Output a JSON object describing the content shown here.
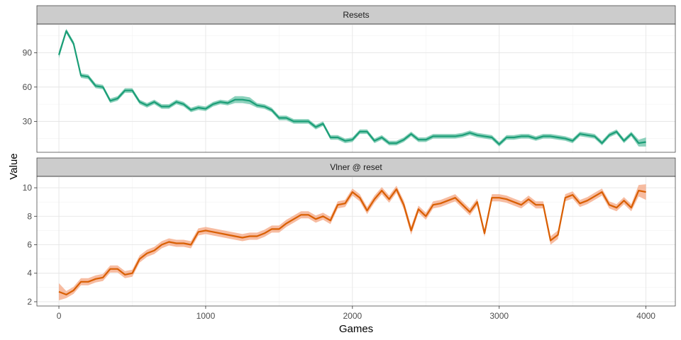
{
  "chart_data": {
    "type": "line",
    "xlabel": "Games",
    "ylabel": "Value",
    "xlim": [
      -150,
      4200
    ],
    "xticks": [
      0,
      1000,
      2000,
      3000,
      4000
    ],
    "grid": true,
    "band": true,
    "x": [
      0,
      50,
      100,
      150,
      200,
      250,
      300,
      350,
      400,
      450,
      500,
      550,
      600,
      650,
      700,
      750,
      800,
      850,
      900,
      950,
      1000,
      1050,
      1100,
      1150,
      1200,
      1250,
      1300,
      1350,
      1400,
      1450,
      1500,
      1550,
      1600,
      1650,
      1700,
      1750,
      1800,
      1850,
      1900,
      1950,
      2000,
      2050,
      2100,
      2150,
      2200,
      2250,
      2300,
      2350,
      2400,
      2450,
      2500,
      2550,
      2600,
      2650,
      2700,
      2750,
      2800,
      2850,
      2900,
      2950,
      3000,
      3050,
      3100,
      3150,
      3200,
      3250,
      3300,
      3350,
      3400,
      3450,
      3500,
      3550,
      3600,
      3650,
      3700,
      3750,
      3800,
      3850,
      3900,
      3950,
      4000
    ],
    "panels": [
      {
        "title": "Resets",
        "color": "#1b9e77",
        "band_color": "#66c2a5",
        "ylim": [
          3,
          115
        ],
        "yticks": [
          30,
          60,
          90
        ],
        "values": [
          88,
          109,
          98,
          70,
          69,
          61,
          60,
          48,
          50,
          57,
          57,
          47,
          44,
          47,
          43,
          43,
          47,
          45,
          40,
          42,
          41,
          45,
          47,
          46,
          49,
          49,
          48,
          44,
          43,
          40,
          33,
          33,
          30,
          30,
          30,
          25,
          28,
          16,
          16,
          13,
          14,
          21,
          21,
          13,
          16,
          11,
          11,
          14,
          19,
          14,
          14,
          17,
          17,
          17,
          17,
          18,
          20,
          18,
          17,
          16,
          10,
          16,
          16,
          17,
          17,
          15,
          17,
          17,
          16,
          15,
          13,
          19,
          18,
          17,
          11,
          18,
          21,
          13,
          19,
          11,
          12
        ],
        "band_halfwidth": [
          3,
          2,
          2,
          2,
          2,
          2,
          2,
          2,
          2,
          2,
          2,
          2,
          2,
          2,
          2,
          2,
          2,
          2,
          2,
          2,
          2,
          2,
          2,
          2,
          3,
          3,
          3,
          2,
          2,
          2,
          2,
          2,
          2,
          2,
          2,
          2,
          2,
          2,
          2,
          2,
          2,
          2,
          2,
          2,
          2,
          2,
          2,
          2,
          2,
          2,
          2,
          2,
          2,
          2,
          2,
          2,
          2,
          2,
          2,
          2,
          2,
          2,
          2,
          2,
          2,
          2,
          2,
          2,
          2,
          2,
          2,
          2,
          2,
          2,
          2,
          2,
          2,
          2,
          2,
          3,
          4
        ]
      },
      {
        "title": "Vlner @ reset",
        "color": "#d95f02",
        "band_color": "#f4a582",
        "ylim": [
          1.7,
          10.8
        ],
        "yticks": [
          2,
          4,
          6,
          8,
          10
        ],
        "values": [
          2.7,
          2.5,
          2.8,
          3.4,
          3.4,
          3.6,
          3.7,
          4.3,
          4.3,
          3.9,
          4.0,
          5.0,
          5.4,
          5.6,
          6.0,
          6.2,
          6.1,
          6.1,
          6.0,
          6.9,
          7.0,
          6.9,
          6.8,
          6.7,
          6.6,
          6.5,
          6.6,
          6.6,
          6.8,
          7.1,
          7.1,
          7.5,
          7.8,
          8.1,
          8.1,
          7.8,
          8.0,
          7.7,
          8.8,
          8.9,
          9.7,
          9.3,
          8.4,
          9.2,
          9.8,
          9.2,
          9.9,
          8.8,
          7.0,
          8.5,
          8.0,
          8.8,
          8.9,
          9.1,
          9.3,
          8.8,
          8.3,
          9.0,
          6.8,
          9.3,
          9.3,
          9.2,
          9.0,
          8.8,
          9.2,
          8.8,
          8.8,
          6.3,
          6.7,
          9.3,
          9.5,
          8.9,
          9.1,
          9.4,
          9.7,
          8.8,
          8.6,
          9.1,
          8.6,
          9.8,
          9.7
        ],
        "band_halfwidth": [
          0.6,
          0.25,
          0.25,
          0.25,
          0.25,
          0.25,
          0.25,
          0.25,
          0.25,
          0.25,
          0.25,
          0.25,
          0.25,
          0.25,
          0.25,
          0.25,
          0.25,
          0.25,
          0.25,
          0.25,
          0.25,
          0.25,
          0.25,
          0.25,
          0.25,
          0.25,
          0.25,
          0.25,
          0.25,
          0.25,
          0.25,
          0.25,
          0.25,
          0.25,
          0.25,
          0.25,
          0.25,
          0.25,
          0.25,
          0.25,
          0.25,
          0.25,
          0.25,
          0.25,
          0.25,
          0.25,
          0.25,
          0.3,
          0.3,
          0.25,
          0.25,
          0.25,
          0.25,
          0.25,
          0.25,
          0.25,
          0.25,
          0.25,
          0.25,
          0.25,
          0.25,
          0.25,
          0.25,
          0.25,
          0.25,
          0.25,
          0.25,
          0.3,
          0.3,
          0.25,
          0.25,
          0.25,
          0.25,
          0.25,
          0.25,
          0.25,
          0.25,
          0.25,
          0.25,
          0.4,
          0.55
        ]
      }
    ]
  }
}
